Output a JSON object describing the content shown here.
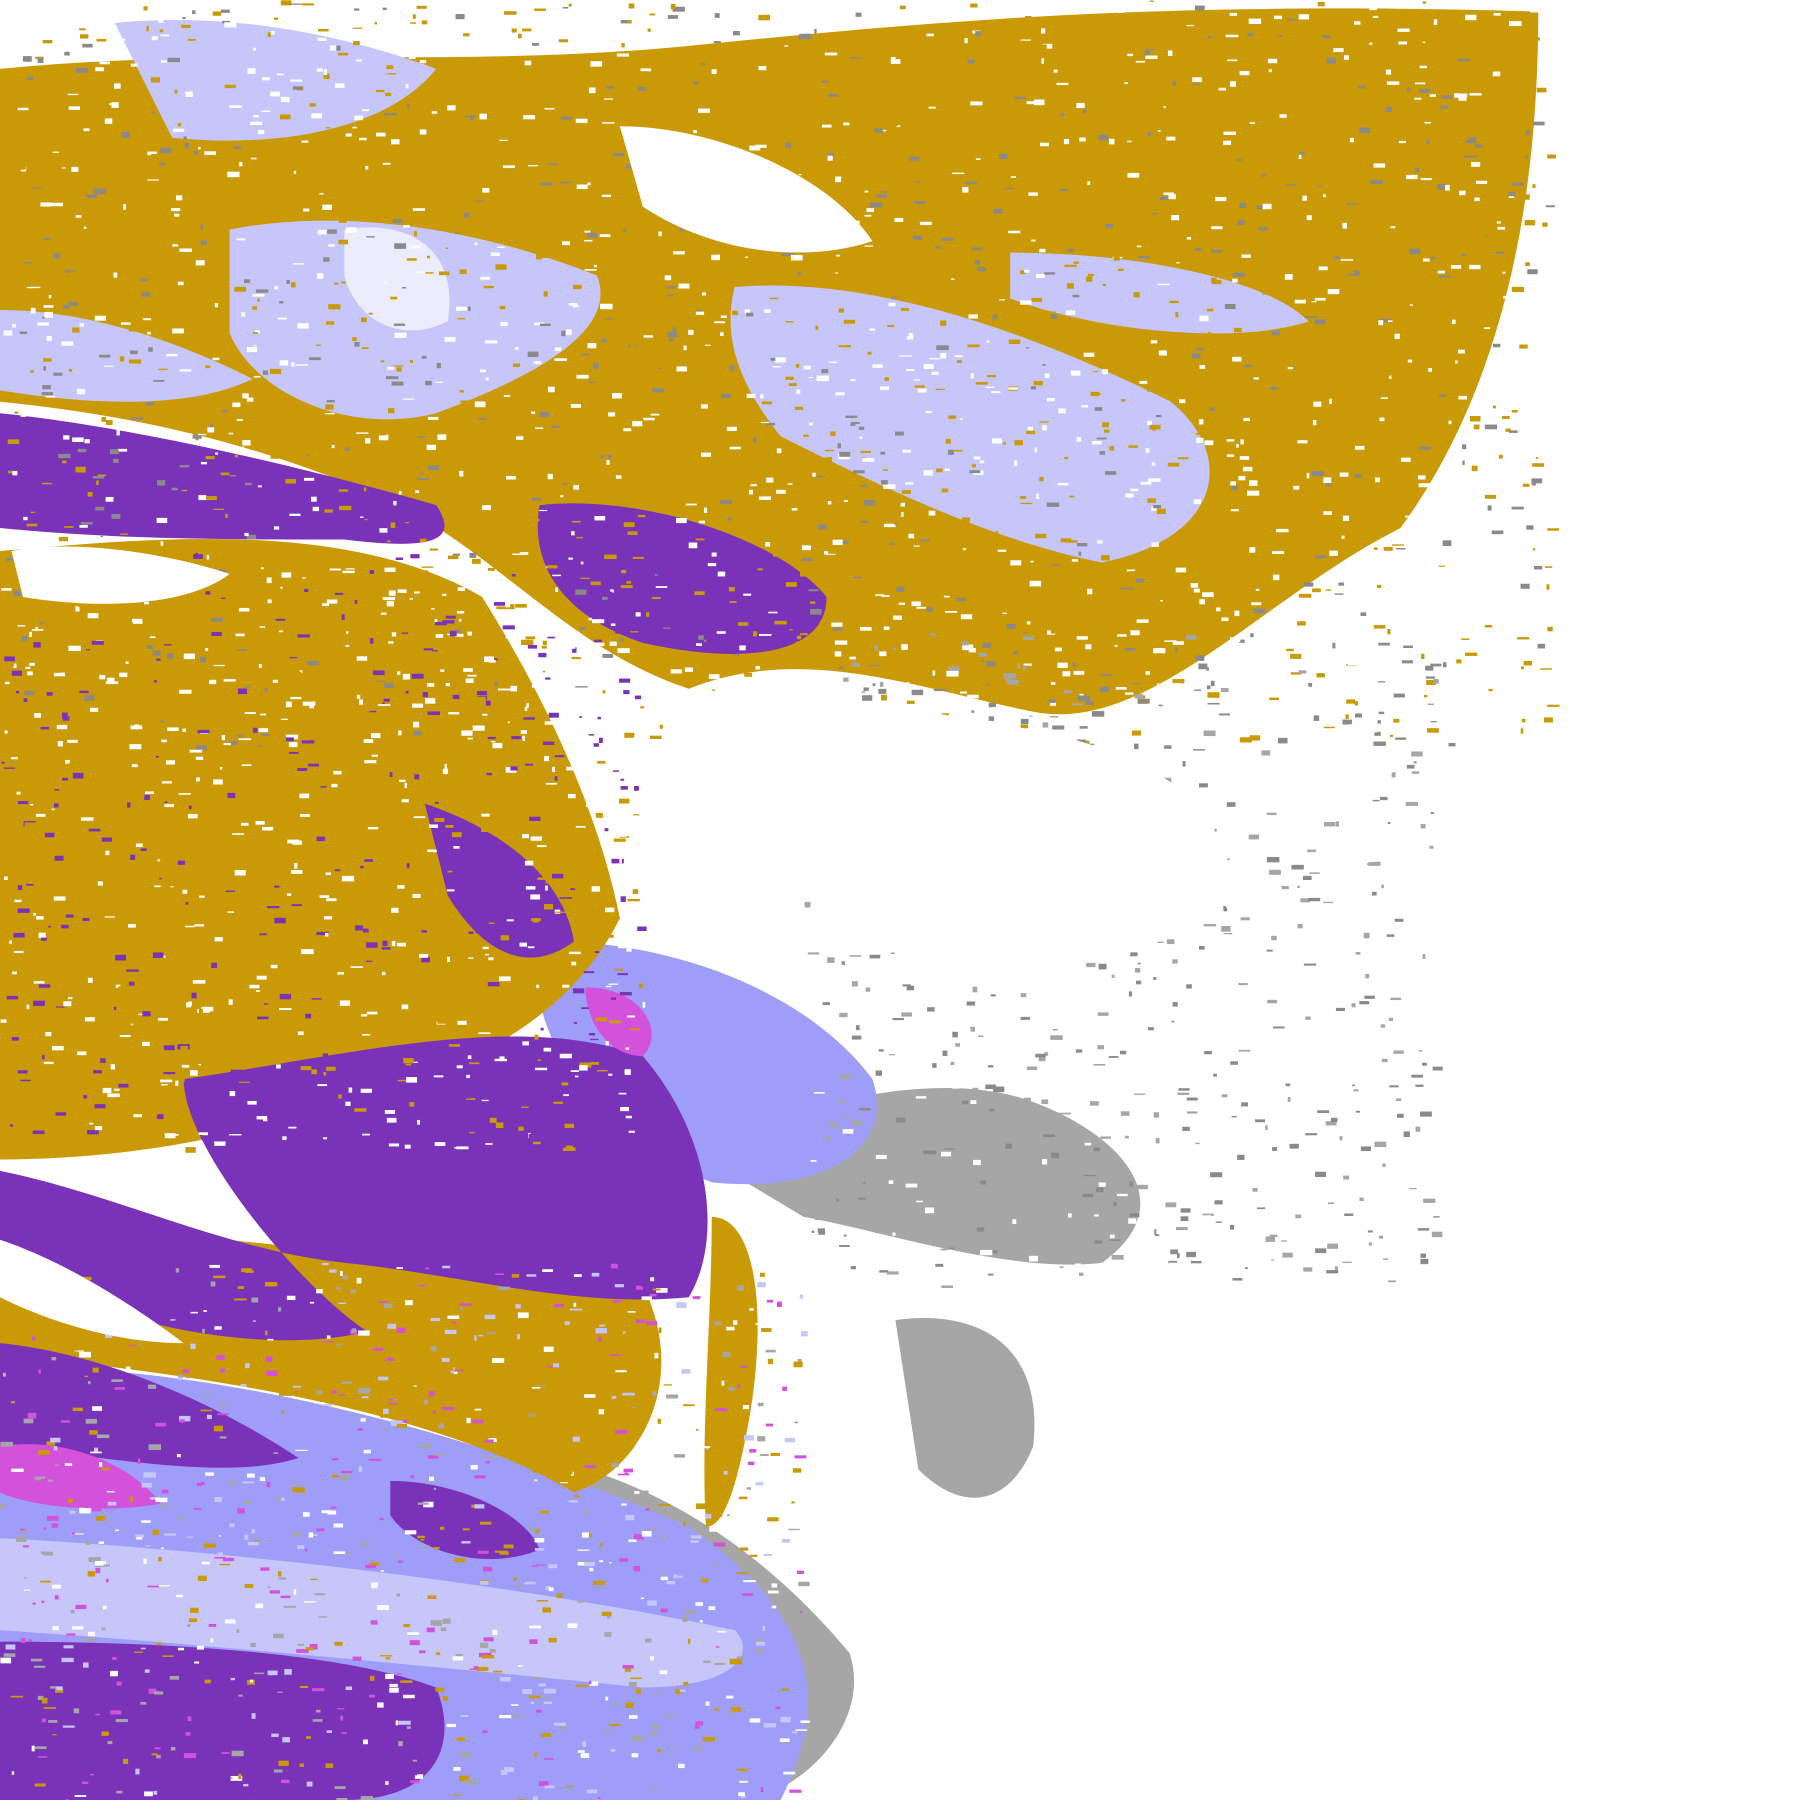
{
  "image": {
    "kind": "cloud-type classification imagery",
    "colors": {
      "background": "#ffffff",
      "gold": "#c99a06",
      "purple": "#7a33b8",
      "lavender": "#c6c6fb",
      "periwinkle": "#9e9ef8",
      "gray": "#a6a6a6",
      "dark_gray": "#8a8a8a",
      "magenta": "#d451dc",
      "pale": "#ececfd"
    }
  }
}
